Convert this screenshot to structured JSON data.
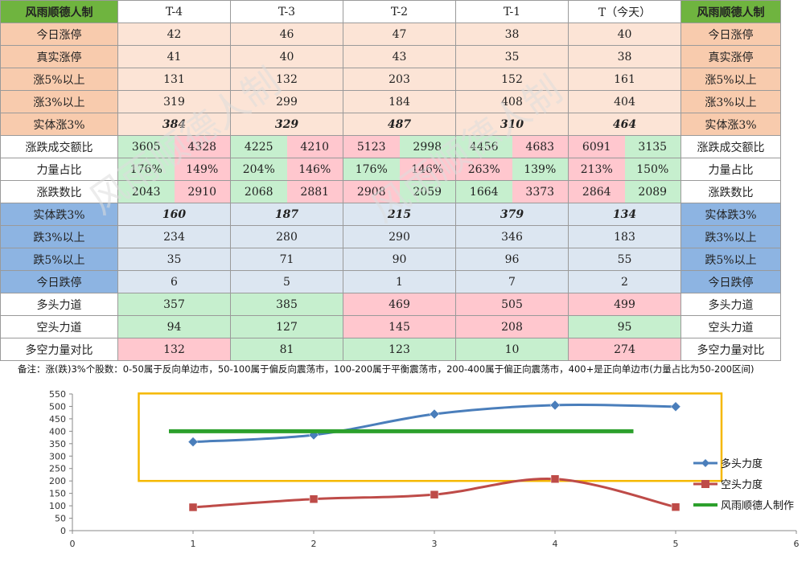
{
  "table": {
    "corner_label": "风雨顺德人制",
    "right_header_label": "风雨顺德人制",
    "day_headers": [
      "T-4",
      "T-3",
      "T-2",
      "T-1",
      "T（今天）"
    ],
    "rows_top": [
      {
        "label": "今日涨停",
        "values": [
          "42",
          "46",
          "47",
          "38",
          "40"
        ]
      },
      {
        "label": "真实涨停",
        "values": [
          "41",
          "40",
          "43",
          "35",
          "38"
        ]
      },
      {
        "label": "涨5%以上",
        "values": [
          "131",
          "132",
          "203",
          "152",
          "161"
        ]
      },
      {
        "label": "涨3%以上",
        "values": [
          "319",
          "299",
          "184",
          "408",
          "404"
        ]
      }
    ],
    "solid_up": {
      "label": "实体涨3%",
      "values": [
        "384",
        "329",
        "487",
        "310",
        "464"
      ]
    },
    "pair_rows": [
      {
        "label": "涨跌成交额比",
        "values": [
          [
            "3605",
            "4328"
          ],
          [
            "4225",
            "4210"
          ],
          [
            "5123",
            "2998"
          ],
          [
            "4456",
            "4683"
          ],
          [
            "6091",
            "3135"
          ]
        ],
        "colors": [
          [
            "green",
            "red"
          ],
          [
            "green",
            "red"
          ],
          [
            "red",
            "green"
          ],
          [
            "green",
            "red"
          ],
          [
            "red",
            "green"
          ]
        ]
      },
      {
        "label": "力量占比",
        "values": [
          [
            "176%",
            "149%"
          ],
          [
            "204%",
            "146%"
          ],
          [
            "176%",
            "146%"
          ],
          [
            "263%",
            "139%"
          ],
          [
            "213%",
            "150%"
          ]
        ],
        "colors": [
          [
            "green",
            "red"
          ],
          [
            "green",
            "red"
          ],
          [
            "green",
            "red"
          ],
          [
            "red",
            "green"
          ],
          [
            "red",
            "green"
          ]
        ]
      },
      {
        "label": "涨跌数比",
        "values": [
          [
            "2043",
            "2910"
          ],
          [
            "2068",
            "2881"
          ],
          [
            "2908",
            "2059"
          ],
          [
            "1664",
            "3373"
          ],
          [
            "2864",
            "2089"
          ]
        ],
        "colors": [
          [
            "green",
            "red"
          ],
          [
            "green",
            "red"
          ],
          [
            "red",
            "green"
          ],
          [
            "green",
            "red"
          ],
          [
            "red",
            "green"
          ]
        ]
      }
    ],
    "solid_down": {
      "label": "实体跌3%",
      "values": [
        "160",
        "187",
        "215",
        "379",
        "134"
      ]
    },
    "rows_down": [
      {
        "label": "跌3%以上",
        "values": [
          "234",
          "280",
          "290",
          "346",
          "183"
        ]
      },
      {
        "label": "跌5%以上",
        "values": [
          "35",
          "71",
          "90",
          "96",
          "55"
        ]
      },
      {
        "label": "今日跌停",
        "values": [
          "6",
          "5",
          "1",
          "7",
          "2"
        ]
      }
    ],
    "rows_force": [
      {
        "label": "多头力道",
        "values": [
          "357",
          "385",
          "469",
          "505",
          "499"
        ],
        "colors": [
          "green",
          "green",
          "red",
          "red",
          "red"
        ]
      },
      {
        "label": "空头力道",
        "values": [
          "94",
          "127",
          "145",
          "208",
          "95"
        ],
        "colors": [
          "green",
          "green",
          "red",
          "red",
          "green"
        ]
      },
      {
        "label": "多空力量对比",
        "values": [
          "132",
          "81",
          "123",
          "10",
          "274"
        ],
        "colors": [
          "red",
          "green",
          "green",
          "green",
          "red"
        ]
      }
    ],
    "note": "备注：涨(跌)3%个股数：0-50属于反向单边市，50-100属于偏反向震荡市，100-200属于平衡震荡市，200-400属于偏正向震荡市，400+是正向单边市(力量占比为50-200区间)"
  },
  "watermark": "风雨顺德人制",
  "chart_data": {
    "type": "line",
    "x": [
      1,
      2,
      3,
      4,
      5
    ],
    "series": [
      {
        "name": "多头力度",
        "values": [
          357,
          385,
          469,
          505,
          499
        ],
        "color": "#4a7ebb",
        "marker": "diamond"
      },
      {
        "name": "空头力度",
        "values": [
          94,
          127,
          145,
          208,
          95
        ],
        "color": "#be4b48",
        "marker": "square"
      },
      {
        "name": "风雨顺德人制作",
        "x": [
          0.8,
          4.65
        ],
        "values": [
          400,
          400
        ],
        "color": "#2ca02c",
        "marker": "none"
      }
    ],
    "xlim": [
      0,
      6
    ],
    "xticks": [
      "0",
      "1",
      "2",
      "3",
      "4",
      "5",
      "6"
    ],
    "ylim": [
      0,
      550
    ],
    "yticks": [
      "0",
      "50",
      "100",
      "150",
      "200",
      "250",
      "300",
      "350",
      "400",
      "450",
      "500",
      "550"
    ],
    "highlight_box": {
      "x": [
        0.55,
        5.38
      ],
      "y": [
        200,
        552
      ],
      "color": "#f5b800"
    },
    "grid": false,
    "legend": "right"
  }
}
